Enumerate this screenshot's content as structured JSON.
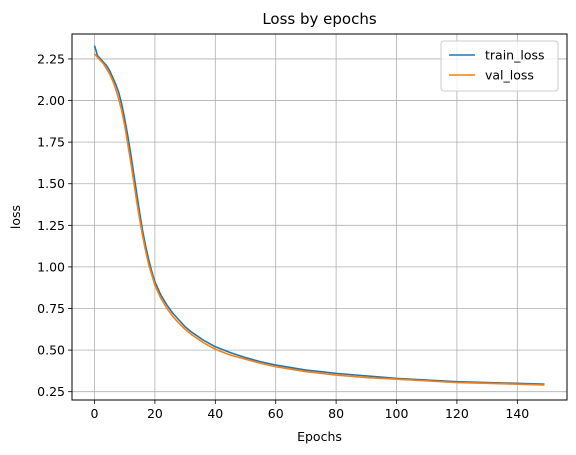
{
  "chart_data": {
    "type": "line",
    "title": "Loss by epochs",
    "xlabel": "Epochs",
    "ylabel": "loss",
    "xlim": [
      -7.45,
      156.45
    ],
    "ylim": [
      0.2,
      2.4
    ],
    "xticks": [
      0,
      20,
      40,
      60,
      80,
      100,
      120,
      140
    ],
    "yticks": [
      0.25,
      0.5,
      0.75,
      1.0,
      1.25,
      1.5,
      1.75,
      2.0,
      2.25
    ],
    "grid": true,
    "legend_position": "top-right",
    "series": [
      {
        "name": "train_loss",
        "color": "#1f77b4",
        "x": [
          0,
          1,
          2,
          3,
          4,
          5,
          6,
          7,
          8,
          9,
          10,
          11,
          12,
          13,
          14,
          15,
          16,
          17,
          18,
          19,
          20,
          22,
          24,
          26,
          28,
          30,
          32,
          34,
          36,
          38,
          40,
          45,
          50,
          55,
          60,
          65,
          70,
          75,
          80,
          90,
          100,
          110,
          120,
          130,
          140,
          149
        ],
        "y": [
          2.33,
          2.27,
          2.25,
          2.23,
          2.21,
          2.18,
          2.14,
          2.1,
          2.05,
          1.98,
          1.89,
          1.79,
          1.68,
          1.56,
          1.44,
          1.32,
          1.21,
          1.12,
          1.04,
          0.97,
          0.91,
          0.83,
          0.77,
          0.72,
          0.68,
          0.64,
          0.61,
          0.585,
          0.56,
          0.54,
          0.52,
          0.485,
          0.455,
          0.43,
          0.41,
          0.395,
          0.38,
          0.37,
          0.36,
          0.345,
          0.33,
          0.32,
          0.31,
          0.305,
          0.3,
          0.295
        ]
      },
      {
        "name": "val_loss",
        "color": "#ff7f0e",
        "x": [
          0,
          1,
          2,
          3,
          4,
          5,
          6,
          7,
          8,
          9,
          10,
          11,
          12,
          13,
          14,
          15,
          16,
          17,
          18,
          19,
          20,
          22,
          24,
          26,
          28,
          30,
          32,
          34,
          36,
          38,
          40,
          45,
          50,
          55,
          60,
          65,
          70,
          75,
          80,
          90,
          100,
          110,
          120,
          130,
          140,
          149
        ],
        "y": [
          2.28,
          2.26,
          2.24,
          2.22,
          2.19,
          2.16,
          2.12,
          2.07,
          2.01,
          1.94,
          1.85,
          1.74,
          1.63,
          1.51,
          1.39,
          1.28,
          1.18,
          1.09,
          1.01,
          0.95,
          0.89,
          0.81,
          0.75,
          0.7,
          0.66,
          0.625,
          0.595,
          0.57,
          0.545,
          0.525,
          0.505,
          0.47,
          0.445,
          0.42,
          0.4,
          0.385,
          0.37,
          0.36,
          0.35,
          0.335,
          0.325,
          0.315,
          0.305,
          0.3,
          0.295,
          0.29
        ]
      }
    ]
  }
}
